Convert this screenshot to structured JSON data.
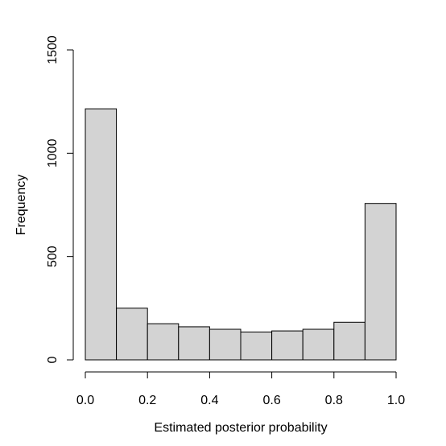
{
  "chart_data": {
    "type": "bar",
    "title": "",
    "xlabel": "Estimated posterior probability",
    "ylabel": "Frequency",
    "bins": [
      {
        "from": 0.0,
        "to": 0.1,
        "count": 1215
      },
      {
        "from": 0.1,
        "to": 0.2,
        "count": 250
      },
      {
        "from": 0.2,
        "to": 0.3,
        "count": 175
      },
      {
        "from": 0.3,
        "to": 0.4,
        "count": 160
      },
      {
        "from": 0.4,
        "to": 0.5,
        "count": 148
      },
      {
        "from": 0.5,
        "to": 0.6,
        "count": 135
      },
      {
        "from": 0.6,
        "to": 0.7,
        "count": 140
      },
      {
        "from": 0.7,
        "to": 0.8,
        "count": 148
      },
      {
        "from": 0.8,
        "to": 0.9,
        "count": 182
      },
      {
        "from": 0.9,
        "to": 1.0,
        "count": 757
      }
    ],
    "xlim": [
      0,
      1
    ],
    "ylim": [
      0,
      1500
    ],
    "x_ticks": [
      0.0,
      0.2,
      0.4,
      0.6,
      0.8,
      1.0
    ],
    "x_tick_labels": [
      "0.0",
      "0.2",
      "0.4",
      "0.6",
      "0.8",
      "1.0"
    ],
    "y_ticks": [
      0,
      500,
      1000,
      1500
    ],
    "y_tick_labels": [
      "0",
      "500",
      "1000",
      "1500"
    ],
    "grid": false,
    "legend": "none",
    "bar_color": "#d3d3d3",
    "edge_color": "#000000"
  }
}
